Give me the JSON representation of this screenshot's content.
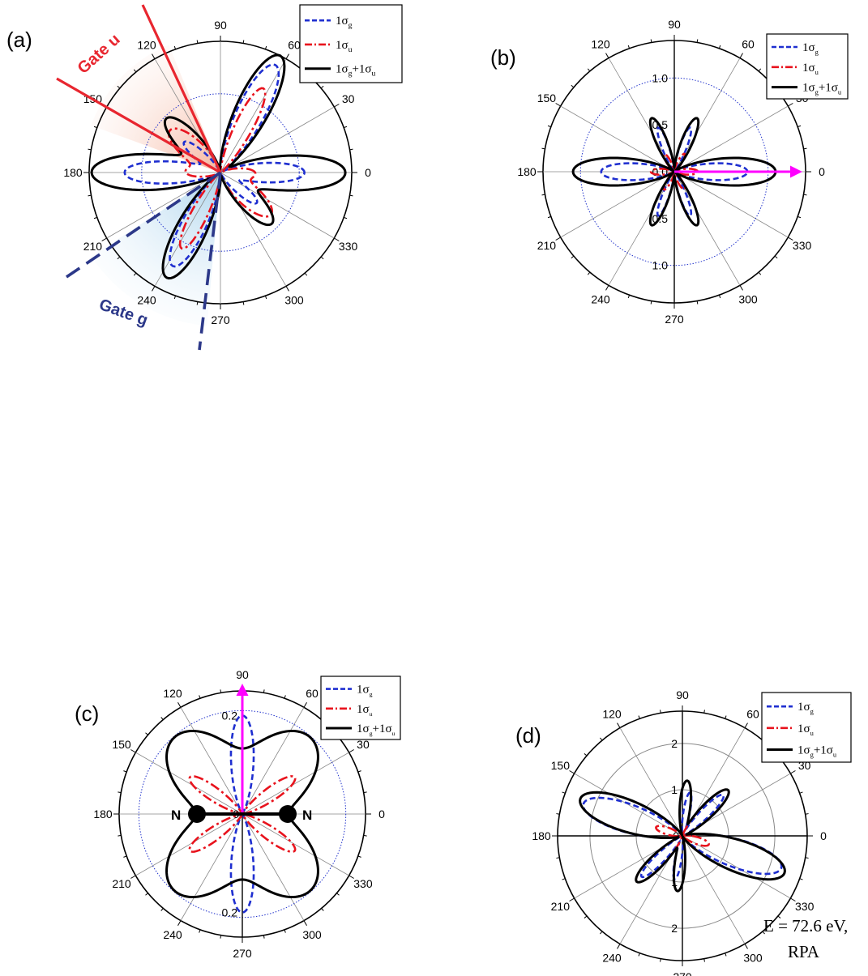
{
  "legend_entries": {
    "sigma_g": {
      "main": "1σ",
      "sub": "g"
    },
    "sigma_u": {
      "main": "1σ",
      "sub": "u"
    },
    "sum": {
      "main1": "1σ",
      "sub1": "g",
      "mid": "+1σ",
      "sub2": "u"
    }
  },
  "angle_ticks": [
    "0",
    "30",
    "60",
    "90",
    "120",
    "150",
    "180",
    "210",
    "240",
    "270",
    "300",
    "330"
  ],
  "colors": {
    "sigma_g": "#1f2fd0",
    "sigma_u": "#e8131d",
    "sum": "#000000",
    "arrow": "#ff00ff",
    "gate_u": "#e8262f",
    "gate_g": "#2c3889",
    "ref_circle": "#2233cc"
  },
  "annotations": {
    "gate_u": "Gate u",
    "gate_g": "Gate g",
    "atom_left": "N",
    "atom_right": "N",
    "energy_line1": "E = 72.6 eV,",
    "energy_line2": "RPA"
  },
  "chart_data": [
    {
      "type": "line",
      "panel": "(a)",
      "projection": "polar",
      "angle_ticks_deg": [
        0,
        30,
        60,
        90,
        120,
        150,
        180,
        210,
        240,
        270,
        300,
        330
      ],
      "radial_ticks": [],
      "radial_max": 1.0,
      "reference_circle_r": 0.6,
      "legend": "top-right",
      "series": [
        {
          "name": "1σg",
          "style": "dashed",
          "lobes": [
            {
              "angle": 0,
              "r": 0.64,
              "w": 11
            },
            {
              "angle": 180,
              "r": 0.73,
              "w": 11
            },
            {
              "angle": 63,
              "r": 0.92,
              "w": 11
            },
            {
              "angle": 243,
              "r": 0.8,
              "w": 11
            },
            {
              "angle": 140,
              "r": 0.36,
              "w": 10
            },
            {
              "angle": 320,
              "r": 0.36,
              "w": 10
            }
          ]
        },
        {
          "name": "1σu",
          "style": "dashdot",
          "lobes": [
            {
              "angle": 140,
              "r": 0.5,
              "w": 15
            },
            {
              "angle": 320,
              "r": 0.5,
              "w": 15
            },
            {
              "angle": 63,
              "r": 0.72,
              "w": 9
            },
            {
              "angle": 243,
              "r": 0.65,
              "w": 9
            },
            {
              "angle": 0,
              "r": 0.25,
              "w": 12
            },
            {
              "angle": 180,
              "r": 0.25,
              "w": 12
            }
          ]
        },
        {
          "name": "1σg+1σu",
          "style": "solid",
          "lobes": [
            {
              "angle": 0,
              "r": 0.95,
              "w": 13
            },
            {
              "angle": 180,
              "r": 0.98,
              "w": 13
            },
            {
              "angle": 63,
              "r": 1.0,
              "w": 12
            },
            {
              "angle": 243,
              "r": 0.9,
              "w": 12
            },
            {
              "angle": 135,
              "r": 0.58,
              "w": 13
            },
            {
              "angle": 315,
              "r": 0.55,
              "w": 13
            }
          ]
        }
      ]
    },
    {
      "type": "line",
      "panel": "(b)",
      "projection": "polar",
      "angle_ticks_deg": [
        0,
        30,
        60,
        90,
        120,
        150,
        180,
        210,
        240,
        270,
        300,
        330
      ],
      "radial_ticks": [
        "0.0",
        "0.5",
        "1.0"
      ],
      "radial_tick_values": [
        0.0,
        0.5,
        1.0
      ],
      "radial_max": 1.4,
      "reference_circle_r": 1.0,
      "legend": "top-right",
      "field_direction_deg": 0,
      "series": [
        {
          "name": "1σg",
          "style": "dashed",
          "lobes": [
            {
              "angle": 0,
              "r": 0.78,
              "w": 11
            },
            {
              "angle": 180,
              "r": 0.78,
              "w": 11
            },
            {
              "angle": 70,
              "r": 0.5,
              "w": 7
            },
            {
              "angle": 110,
              "r": 0.5,
              "w": 7
            },
            {
              "angle": 250,
              "r": 0.5,
              "w": 7
            },
            {
              "angle": 290,
              "r": 0.5,
              "w": 7
            }
          ]
        },
        {
          "name": "1σu",
          "style": "dashdot",
          "lobes": [
            {
              "angle": 0,
              "r": 0.25,
              "w": 12
            },
            {
              "angle": 180,
              "r": 0.25,
              "w": 12
            },
            {
              "angle": 60,
              "r": 0.22,
              "w": 10
            },
            {
              "angle": 120,
              "r": 0.22,
              "w": 10
            },
            {
              "angle": 240,
              "r": 0.22,
              "w": 10
            },
            {
              "angle": 300,
              "r": 0.22,
              "w": 10
            }
          ]
        },
        {
          "name": "1σg+1σu",
          "style": "solid",
          "lobes": [
            {
              "angle": 0,
              "r": 1.08,
              "w": 13
            },
            {
              "angle": 180,
              "r": 1.08,
              "w": 13
            },
            {
              "angle": 67,
              "r": 0.62,
              "w": 9
            },
            {
              "angle": 113,
              "r": 0.62,
              "w": 9
            },
            {
              "angle": 247,
              "r": 0.62,
              "w": 9
            },
            {
              "angle": 293,
              "r": 0.62,
              "w": 9
            }
          ]
        }
      ]
    },
    {
      "type": "line",
      "panel": "(c)",
      "projection": "polar",
      "angle_ticks_deg": [
        0,
        30,
        60,
        90,
        120,
        150,
        180,
        210,
        240,
        270,
        300,
        330
      ],
      "radial_ticks": [
        "0",
        "0.2",
        "0.2"
      ],
      "radial_tick_values": [
        0.0,
        0.2
      ],
      "radial_max": 0.25,
      "reference_circle_r": 0.21,
      "legend": "top-right",
      "field_direction_deg": 90,
      "series": [
        {
          "name": "1σg",
          "style": "dashed",
          "lobes": [
            {
              "angle": 90,
              "r": 0.2,
              "w": 11
            },
            {
              "angle": 270,
              "r": 0.2,
              "w": 11
            }
          ]
        },
        {
          "name": "1σu",
          "style": "dashdot",
          "lobes": [
            {
              "angle": 35,
              "r": 0.13,
              "w": 10
            },
            {
              "angle": 145,
              "r": 0.13,
              "w": 10
            },
            {
              "angle": 215,
              "r": 0.13,
              "w": 10
            },
            {
              "angle": 325,
              "r": 0.13,
              "w": 10
            }
          ]
        },
        {
          "name": "1σg+1σu",
          "style": "solid",
          "lobes": [
            {
              "angle": 48,
              "r": 0.205,
              "w": 28
            },
            {
              "angle": 132,
              "r": 0.205,
              "w": 28
            },
            {
              "angle": 228,
              "r": 0.205,
              "w": 28
            },
            {
              "angle": 312,
              "r": 0.205,
              "w": 28
            }
          ]
        }
      ]
    },
    {
      "type": "line",
      "panel": "(d)",
      "projection": "polar",
      "angle_ticks_deg": [
        0,
        30,
        60,
        90,
        120,
        150,
        180,
        210,
        240,
        270,
        300,
        330
      ],
      "radial_ticks": [
        "0",
        "1",
        "2",
        "1",
        "2"
      ],
      "radial_tick_values": [
        0,
        1,
        2
      ],
      "radial_max": 2.7,
      "legend": "top-right",
      "series": [
        {
          "name": "1σg",
          "style": "dashed",
          "lobes": [
            {
              "angle": 162,
              "r": 2.25,
              "w": 13
            },
            {
              "angle": 342,
              "r": 2.25,
              "w": 13
            },
            {
              "angle": 80,
              "r": 0.95,
              "w": 7
            },
            {
              "angle": 260,
              "r": 0.95,
              "w": 7
            },
            {
              "angle": 45,
              "r": 1.25,
              "w": 8
            },
            {
              "angle": 225,
              "r": 1.25,
              "w": 8
            }
          ]
        },
        {
          "name": "1σu",
          "style": "dashdot",
          "lobes": [
            {
              "angle": 45,
              "r": 1.4,
              "w": 10
            },
            {
              "angle": 225,
              "r": 1.4,
              "w": 10
            },
            {
              "angle": 162,
              "r": 0.6,
              "w": 12
            },
            {
              "angle": 342,
              "r": 0.6,
              "w": 12
            }
          ]
        },
        {
          "name": "1σg+1σu",
          "style": "solid",
          "lobes": [
            {
              "angle": 160,
              "r": 2.35,
              "w": 14
            },
            {
              "angle": 340,
              "r": 2.35,
              "w": 14
            },
            {
              "angle": 85,
              "r": 1.2,
              "w": 9
            },
            {
              "angle": 265,
              "r": 1.2,
              "w": 9
            },
            {
              "angle": 45,
              "r": 1.4,
              "w": 10
            },
            {
              "angle": 225,
              "r": 1.4,
              "w": 10
            }
          ]
        }
      ]
    }
  ],
  "panel_labels": [
    "(a)",
    "(b)",
    "(c)",
    "(d)"
  ]
}
